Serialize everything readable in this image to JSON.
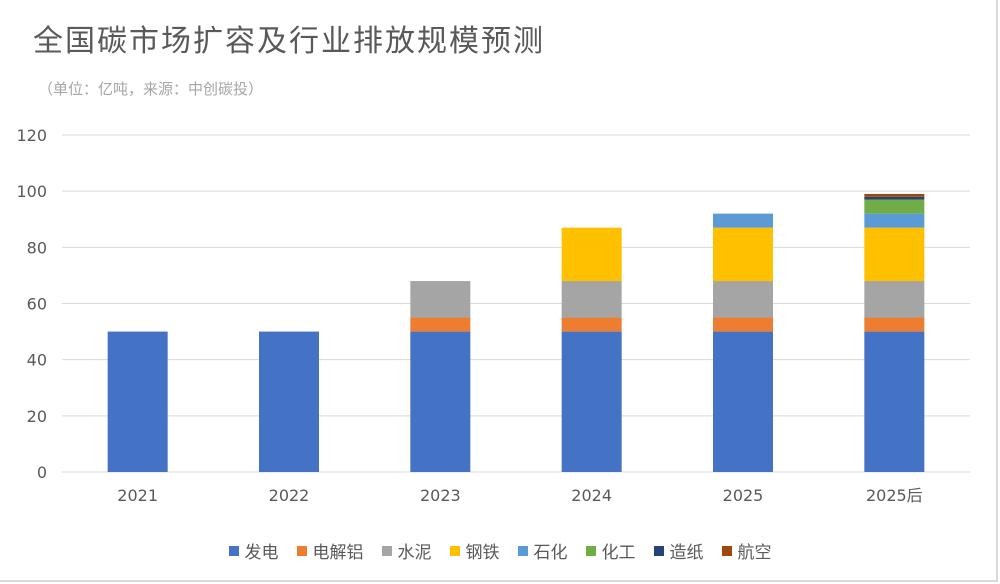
{
  "title": "全国碳市场扩容及行业排放规模预测",
  "subtitle": "（单位：亿吨，来源：中创碳投）",
  "chart_data": {
    "type": "bar",
    "stacked": true,
    "categories": [
      "2021",
      "2022",
      "2023",
      "2024",
      "2025",
      "2025后"
    ],
    "series": [
      {
        "name": "发电",
        "color": "#4472C4",
        "values": [
          50,
          50,
          50,
          50,
          50,
          50
        ]
      },
      {
        "name": "电解铝",
        "color": "#ED7D31",
        "values": [
          0,
          0,
          5,
          5,
          5,
          5
        ]
      },
      {
        "name": "水泥",
        "color": "#A5A5A5",
        "values": [
          0,
          0,
          13,
          13,
          13,
          13
        ]
      },
      {
        "name": "钢铁",
        "color": "#FFC000",
        "values": [
          0,
          0,
          0,
          19,
          19,
          19
        ]
      },
      {
        "name": "石化",
        "color": "#5B9BD5",
        "values": [
          0,
          0,
          0,
          0,
          5,
          5
        ]
      },
      {
        "name": "化工",
        "color": "#70AD47",
        "values": [
          0,
          0,
          0,
          0,
          0,
          5
        ]
      },
      {
        "name": "造纸",
        "color": "#264478",
        "values": [
          0,
          0,
          0,
          0,
          0,
          1
        ]
      },
      {
        "name": "航空",
        "color": "#9E480E",
        "values": [
          0,
          0,
          0,
          0,
          0,
          1
        ]
      }
    ],
    "ylim": [
      0,
      120
    ],
    "yticks": [
      0,
      20,
      40,
      60,
      80,
      100,
      120
    ],
    "grid": true,
    "legend": "bottom",
    "xlabel": "",
    "ylabel": ""
  }
}
